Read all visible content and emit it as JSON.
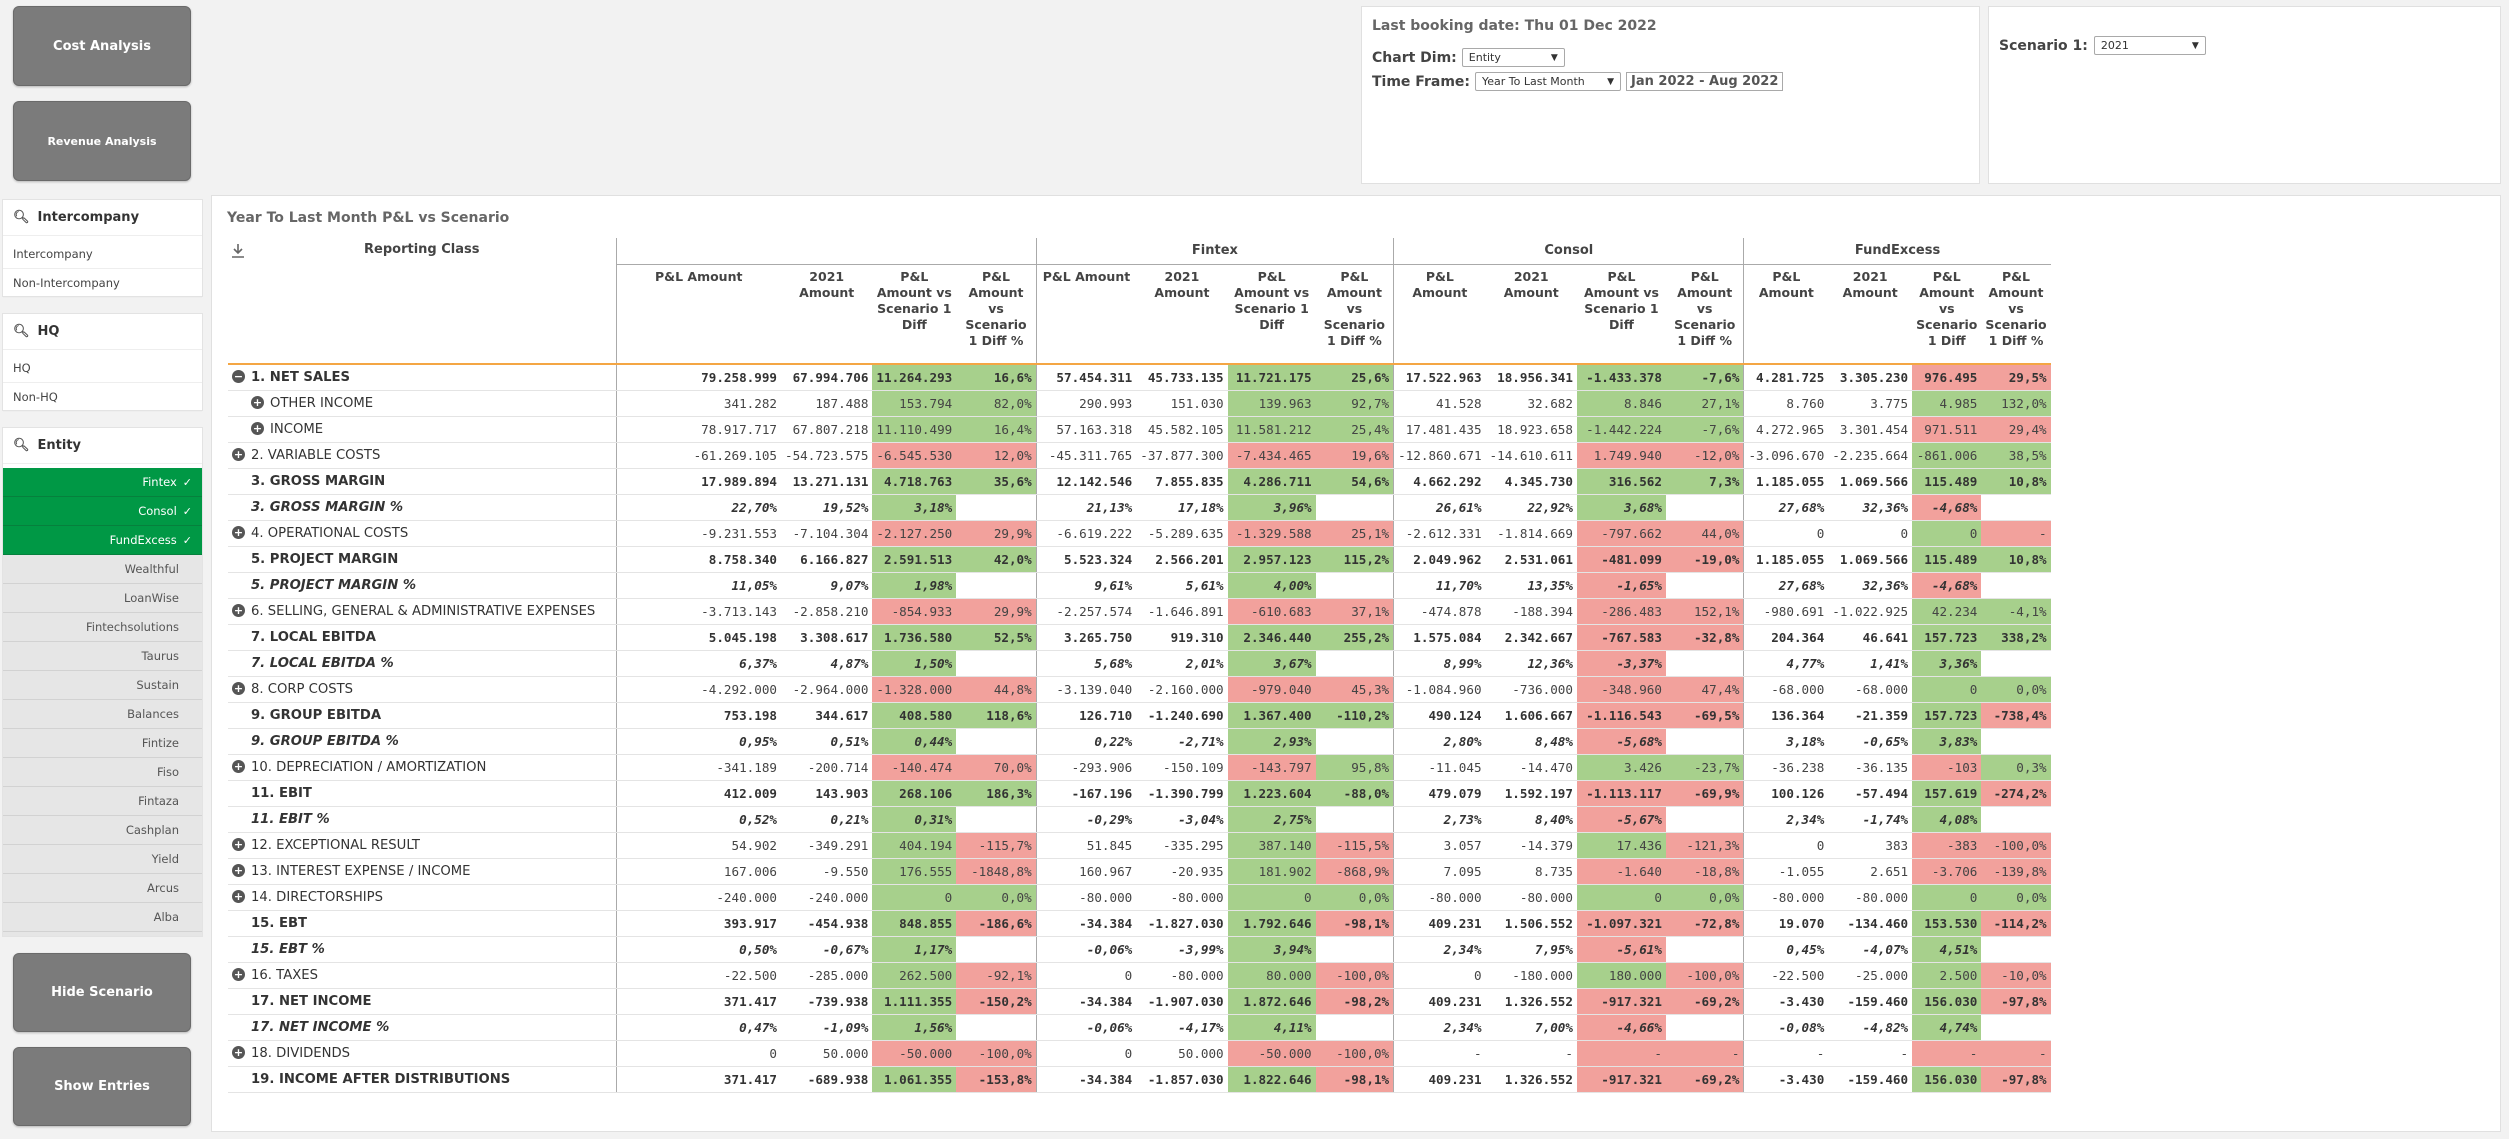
{
  "buttons": {
    "cost": "Cost Analysis",
    "revenue": "Revenue Analysis",
    "hide_scenario": "Hide Scenario",
    "show_entries": "Show Entries"
  },
  "filters": {
    "intercompany": {
      "title": "Intercompany",
      "items": [
        "Intercompany",
        "Non-Intercompany"
      ]
    },
    "hq": {
      "title": "HQ",
      "items": [
        "HQ",
        "Non-HQ"
      ]
    },
    "entity": {
      "title": "Entity",
      "selected": [
        "Fintex",
        "Consol",
        "FundExcess"
      ],
      "items": [
        "Wealthful",
        "LoanWise",
        "Fintechsolutions",
        "Taurus",
        "Sustain",
        "Balances",
        "Fintize",
        "Fiso",
        "Fintaza",
        "Cashplan",
        "Yield",
        "Arcus",
        "Alba"
      ]
    }
  },
  "info": {
    "last_booking": "Last booking date: Thu 01 Dec 2022",
    "chart_dim_label": "Chart Dim:",
    "chart_dim_value": "Entity",
    "time_frame_label": "Time Frame:",
    "time_frame_value": "Year To Last Month",
    "period": "Jan 2022 - Aug 2022"
  },
  "scenario": {
    "label": "Scenario 1:",
    "value": "2021"
  },
  "table": {
    "title": "Year To Last Month P&L vs Scenario",
    "reporting_class": "Reporting Class",
    "groups": [
      "Fintex",
      "Consol",
      "FundExcess"
    ],
    "cols": [
      "P&L Amount",
      "2021 Amount",
      "P&L Amount vs Scenario 1 Diff",
      "P&L Amount vs Scenario 1 Diff %"
    ],
    "cols_narrow": [
      "P&L Amount",
      "2021 Amount",
      "P&L Amount vs Scenario 1 Diff",
      "P&L Amount vs Scenario 1 Diff %"
    ],
    "rows": [
      {
        "label": "1. NET SALES",
        "exp": "−",
        "style": "bold",
        "v": [
          "79.258.999",
          "67.994.706",
          "11.264.293",
          "16,6%",
          "57.454.311",
          "45.733.135",
          "11.721.175",
          "25,6%",
          "17.522.963",
          "18.956.341",
          "-1.433.378",
          "-7,6%",
          "4.281.725",
          "3.305.230",
          "976.495",
          "29,5%"
        ],
        "c": "ppppppnnpp"
      },
      {
        "label": "OTHER INCOME",
        "exp": "+",
        "ind": 1,
        "v": [
          "341.282",
          "187.488",
          "153.794",
          "82,0%",
          "290.993",
          "151.030",
          "139.963",
          "92,7%",
          "41.528",
          "32.682",
          "8.846",
          "27,1%",
          "8.760",
          "3.775",
          "4.985",
          "132,0%"
        ],
        "c": "pppppppppp"
      },
      {
        "label": "INCOME",
        "exp": "+",
        "ind": 1,
        "v": [
          "78.917.717",
          "67.807.218",
          "11.110.499",
          "16,4%",
          "57.163.318",
          "45.582.105",
          "11.581.212",
          "25,4%",
          "17.481.435",
          "18.923.658",
          "-1.442.224",
          "-7,6%",
          "4.272.965",
          "3.301.454",
          "971.511",
          "29,4%"
        ],
        "c": "ppppppnnpp"
      },
      {
        "label": "2. VARIABLE COSTS",
        "exp": "+",
        "v": [
          "-61.269.105",
          "-54.723.575",
          "-6.545.530",
          "12,0%",
          "-45.311.765",
          "-37.877.300",
          "-7.434.465",
          "19,6%",
          "-12.860.671",
          "-14.610.611",
          "1.749.940",
          "-12,0%",
          "-3.096.670",
          "-2.235.664",
          "-861.006",
          "38,5%"
        ],
        "c": "nnnnnnppnn"
      },
      {
        "label": "3. GROSS MARGIN",
        "style": "bold",
        "v": [
          "17.989.894",
          "13.271.131",
          "4.718.763",
          "35,6%",
          "12.142.546",
          "7.855.835",
          "4.286.711",
          "54,6%",
          "4.662.292",
          "4.345.730",
          "316.562",
          "7,3%",
          "1.185.055",
          "1.069.566",
          "115.489",
          "10,8%"
        ],
        "c": "pppppppppp"
      },
      {
        "label": "3. GROSS MARGIN %",
        "style": "ital",
        "orb": 1,
        "v": [
          "22,70%",
          "19,52%",
          "3,18%",
          "",
          "21,13%",
          "17,18%",
          "3,96%",
          "",
          "26,61%",
          "22,92%",
          "3,68%",
          "",
          "27,68%",
          "32,36%",
          "-4,68%",
          ""
        ],
        "c": "p_p_p_n_"
      },
      {
        "label": "4. OPERATIONAL COSTS",
        "exp": "+",
        "v": [
          "-9.231.553",
          "-7.104.304",
          "-2.127.250",
          "29,9%",
          "-6.619.222",
          "-5.289.635",
          "-1.329.588",
          "25,1%",
          "-2.612.331",
          "-1.814.669",
          "-797.662",
          "44,0%",
          "0",
          "0",
          "0",
          "-"
        ],
        "c": "nnnnnnpn"
      },
      {
        "label": "5. PROJECT MARGIN",
        "style": "bold",
        "v": [
          "8.758.340",
          "6.166.827",
          "2.591.513",
          "42,0%",
          "5.523.324",
          "2.566.201",
          "2.957.123",
          "115,2%",
          "2.049.962",
          "2.531.061",
          "-481.099",
          "-19,0%",
          "1.185.055",
          "1.069.566",
          "115.489",
          "10,8%"
        ],
        "c": "ppppnnpp"
      },
      {
        "label": "5. PROJECT MARGIN %",
        "style": "ital",
        "orb": 1,
        "v": [
          "11,05%",
          "9,07%",
          "1,98%",
          "",
          "9,61%",
          "5,61%",
          "4,00%",
          "",
          "11,70%",
          "13,35%",
          "-1,65%",
          "",
          "27,68%",
          "32,36%",
          "-4,68%",
          ""
        ],
        "c": "p_p_n_n_"
      },
      {
        "label": "6. SELLING, GENERAL & ADMINISTRATIVE EXPENSES",
        "exp": "+",
        "v": [
          "-3.713.143",
          "-2.858.210",
          "-854.933",
          "29,9%",
          "-2.257.574",
          "-1.646.891",
          "-610.683",
          "37,1%",
          "-474.878",
          "-188.394",
          "-286.483",
          "152,1%",
          "-980.691",
          "-1.022.925",
          "42.234",
          "-4,1%"
        ],
        "c": "nnnnnnpp"
      },
      {
        "label": "7. LOCAL EBITDA",
        "style": "bold",
        "v": [
          "5.045.198",
          "3.308.617",
          "1.736.580",
          "52,5%",
          "3.265.750",
          "919.310",
          "2.346.440",
          "255,2%",
          "1.575.084",
          "2.342.667",
          "-767.583",
          "-32,8%",
          "204.364",
          "46.641",
          "157.723",
          "338,2%"
        ],
        "c": "ppppnnpp"
      },
      {
        "label": "7. LOCAL EBITDA %",
        "style": "ital",
        "orb": 1,
        "v": [
          "6,37%",
          "4,87%",
          "1,50%",
          "",
          "5,68%",
          "2,01%",
          "3,67%",
          "",
          "8,99%",
          "12,36%",
          "-3,37%",
          "",
          "4,77%",
          "1,41%",
          "3,36%",
          ""
        ],
        "c": "p_p_n_p_"
      },
      {
        "label": "8. CORP COSTS",
        "exp": "+",
        "v": [
          "-4.292.000",
          "-2.964.000",
          "-1.328.000",
          "44,8%",
          "-3.139.040",
          "-2.160.000",
          "-979.040",
          "45,3%",
          "-1.084.960",
          "-736.000",
          "-348.960",
          "47,4%",
          "-68.000",
          "-68.000",
          "0",
          "0,0%"
        ],
        "c": "nnnnnnpp"
      },
      {
        "label": "9. GROUP EBITDA",
        "style": "bold",
        "v": [
          "753.198",
          "344.617",
          "408.580",
          "118,6%",
          "126.710",
          "-1.240.690",
          "1.367.400",
          "-110,2%",
          "490.124",
          "1.606.667",
          "-1.116.543",
          "-69,5%",
          "136.364",
          "-21.359",
          "157.723",
          "-738,4%"
        ],
        "c": "ppppnnpn"
      },
      {
        "label": "9. GROUP EBITDA %",
        "style": "ital",
        "orb": 1,
        "v": [
          "0,95%",
          "0,51%",
          "0,44%",
          "",
          "0,22%",
          "-2,71%",
          "2,93%",
          "",
          "2,80%",
          "8,48%",
          "-5,68%",
          "",
          "3,18%",
          "-0,65%",
          "3,83%",
          ""
        ],
        "c": "p_p_n_p_"
      },
      {
        "label": "10. DEPRECIATION / AMORTIZATION",
        "exp": "+",
        "v": [
          "-341.189",
          "-200.714",
          "-140.474",
          "70,0%",
          "-293.906",
          "-150.109",
          "-143.797",
          "95,8%",
          "-11.045",
          "-14.470",
          "3.426",
          "-23,7%",
          "-36.238",
          "-36.135",
          "-103",
          "0,3%"
        ],
        "c": "nnnpppnp"
      },
      {
        "label": "11. EBIT",
        "style": "bold",
        "v": [
          "412.009",
          "143.903",
          "268.106",
          "186,3%",
          "-167.196",
          "-1.390.799",
          "1.223.604",
          "-88,0%",
          "479.079",
          "1.592.197",
          "-1.113.117",
          "-69,9%",
          "100.126",
          "-57.494",
          "157.619",
          "-274,2%"
        ],
        "c": "ppppnnpn"
      },
      {
        "label": "11. EBIT %",
        "style": "ital",
        "orb": 1,
        "v": [
          "0,52%",
          "0,21%",
          "0,31%",
          "",
          "-0,29%",
          "-3,04%",
          "2,75%",
          "",
          "2,73%",
          "8,40%",
          "-5,67%",
          "",
          "2,34%",
          "-1,74%",
          "4,08%",
          ""
        ],
        "c": "p_p_n_p_"
      },
      {
        "label": "12. EXCEPTIONAL RESULT",
        "exp": "+",
        "v": [
          "54.902",
          "-349.291",
          "404.194",
          "-115,7%",
          "51.845",
          "-335.295",
          "387.140",
          "-115,5%",
          "3.057",
          "-14.379",
          "17.436",
          "-121,3%",
          "0",
          "383",
          "-383",
          "-100,0%"
        ],
        "c": "pnpnpnnn"
      },
      {
        "label": "13. INTEREST EXPENSE / INCOME",
        "exp": "+",
        "v": [
          "167.006",
          "-9.550",
          "176.555",
          "-1848,8%",
          "160.967",
          "-20.935",
          "181.902",
          "-868,9%",
          "7.095",
          "8.735",
          "-1.640",
          "-18,8%",
          "-1.055",
          "2.651",
          "-3.706",
          "-139,8%"
        ],
        "c": "pnpnnnnn"
      },
      {
        "label": "14. DIRECTORSHIPS",
        "exp": "+",
        "v": [
          "-240.000",
          "-240.000",
          "0",
          "0,0%",
          "-80.000",
          "-80.000",
          "0",
          "0,0%",
          "-80.000",
          "-80.000",
          "0",
          "0,0%",
          "-80.000",
          "-80.000",
          "0",
          "0,0%"
        ],
        "c": "pppppppp"
      },
      {
        "label": "15. EBT",
        "style": "bold",
        "v": [
          "393.917",
          "-454.938",
          "848.855",
          "-186,6%",
          "-34.384",
          "-1.827.030",
          "1.792.646",
          "-98,1%",
          "409.231",
          "1.506.552",
          "-1.097.321",
          "-72,8%",
          "19.070",
          "-134.460",
          "153.530",
          "-114,2%"
        ],
        "c": "pnpnnnpn"
      },
      {
        "label": "15. EBT %",
        "style": "ital",
        "orb": 1,
        "v": [
          "0,50%",
          "-0,67%",
          "1,17%",
          "",
          "-0,06%",
          "-3,99%",
          "3,94%",
          "",
          "2,34%",
          "7,95%",
          "-5,61%",
          "",
          "0,45%",
          "-4,07%",
          "4,51%",
          ""
        ],
        "c": "p_p_n_p_"
      },
      {
        "label": "16. TAXES",
        "exp": "+",
        "v": [
          "-22.500",
          "-285.000",
          "262.500",
          "-92,1%",
          "0",
          "-80.000",
          "80.000",
          "-100,0%",
          "0",
          "-180.000",
          "180.000",
          "-100,0%",
          "-22.500",
          "-25.000",
          "2.500",
          "-10,0%"
        ],
        "c": "pnpnpnpn"
      },
      {
        "label": "17. NET INCOME",
        "style": "bold",
        "v": [
          "371.417",
          "-739.938",
          "1.111.355",
          "-150,2%",
          "-34.384",
          "-1.907.030",
          "1.872.646",
          "-98,2%",
          "409.231",
          "1.326.552",
          "-917.321",
          "-69,2%",
          "-3.430",
          "-159.460",
          "156.030",
          "-97,8%"
        ],
        "c": "pnpnnnpn"
      },
      {
        "label": "17. NET INCOME %",
        "style": "ital",
        "orb": 1,
        "v": [
          "0,47%",
          "-1,09%",
          "1,56%",
          "",
          "-0,06%",
          "-4,17%",
          "4,11%",
          "",
          "2,34%",
          "7,00%",
          "-4,66%",
          "",
          "-0,08%",
          "-4,82%",
          "4,74%",
          ""
        ],
        "c": "p_p_n_p_"
      },
      {
        "label": "18. DIVIDENDS",
        "exp": "+",
        "v": [
          "0",
          "50.000",
          "-50.000",
          "-100,0%",
          "0",
          "50.000",
          "-50.000",
          "-100,0%",
          "-",
          "-",
          "-",
          "-",
          "-",
          "-",
          "-",
          "-"
        ],
        "c": "nnnnnnnn"
      },
      {
        "label": "19. INCOME AFTER DISTRIBUTIONS",
        "style": "bold",
        "orb": 1,
        "v": [
          "371.417",
          "-689.938",
          "1.061.355",
          "-153,8%",
          "-34.384",
          "-1.857.030",
          "1.822.646",
          "-98,1%",
          "409.231",
          "1.326.552",
          "-917.321",
          "-69,2%",
          "-3.430",
          "-159.460",
          "156.030",
          "-97,8%"
        ],
        "c": "pnpnnnpn"
      }
    ]
  }
}
